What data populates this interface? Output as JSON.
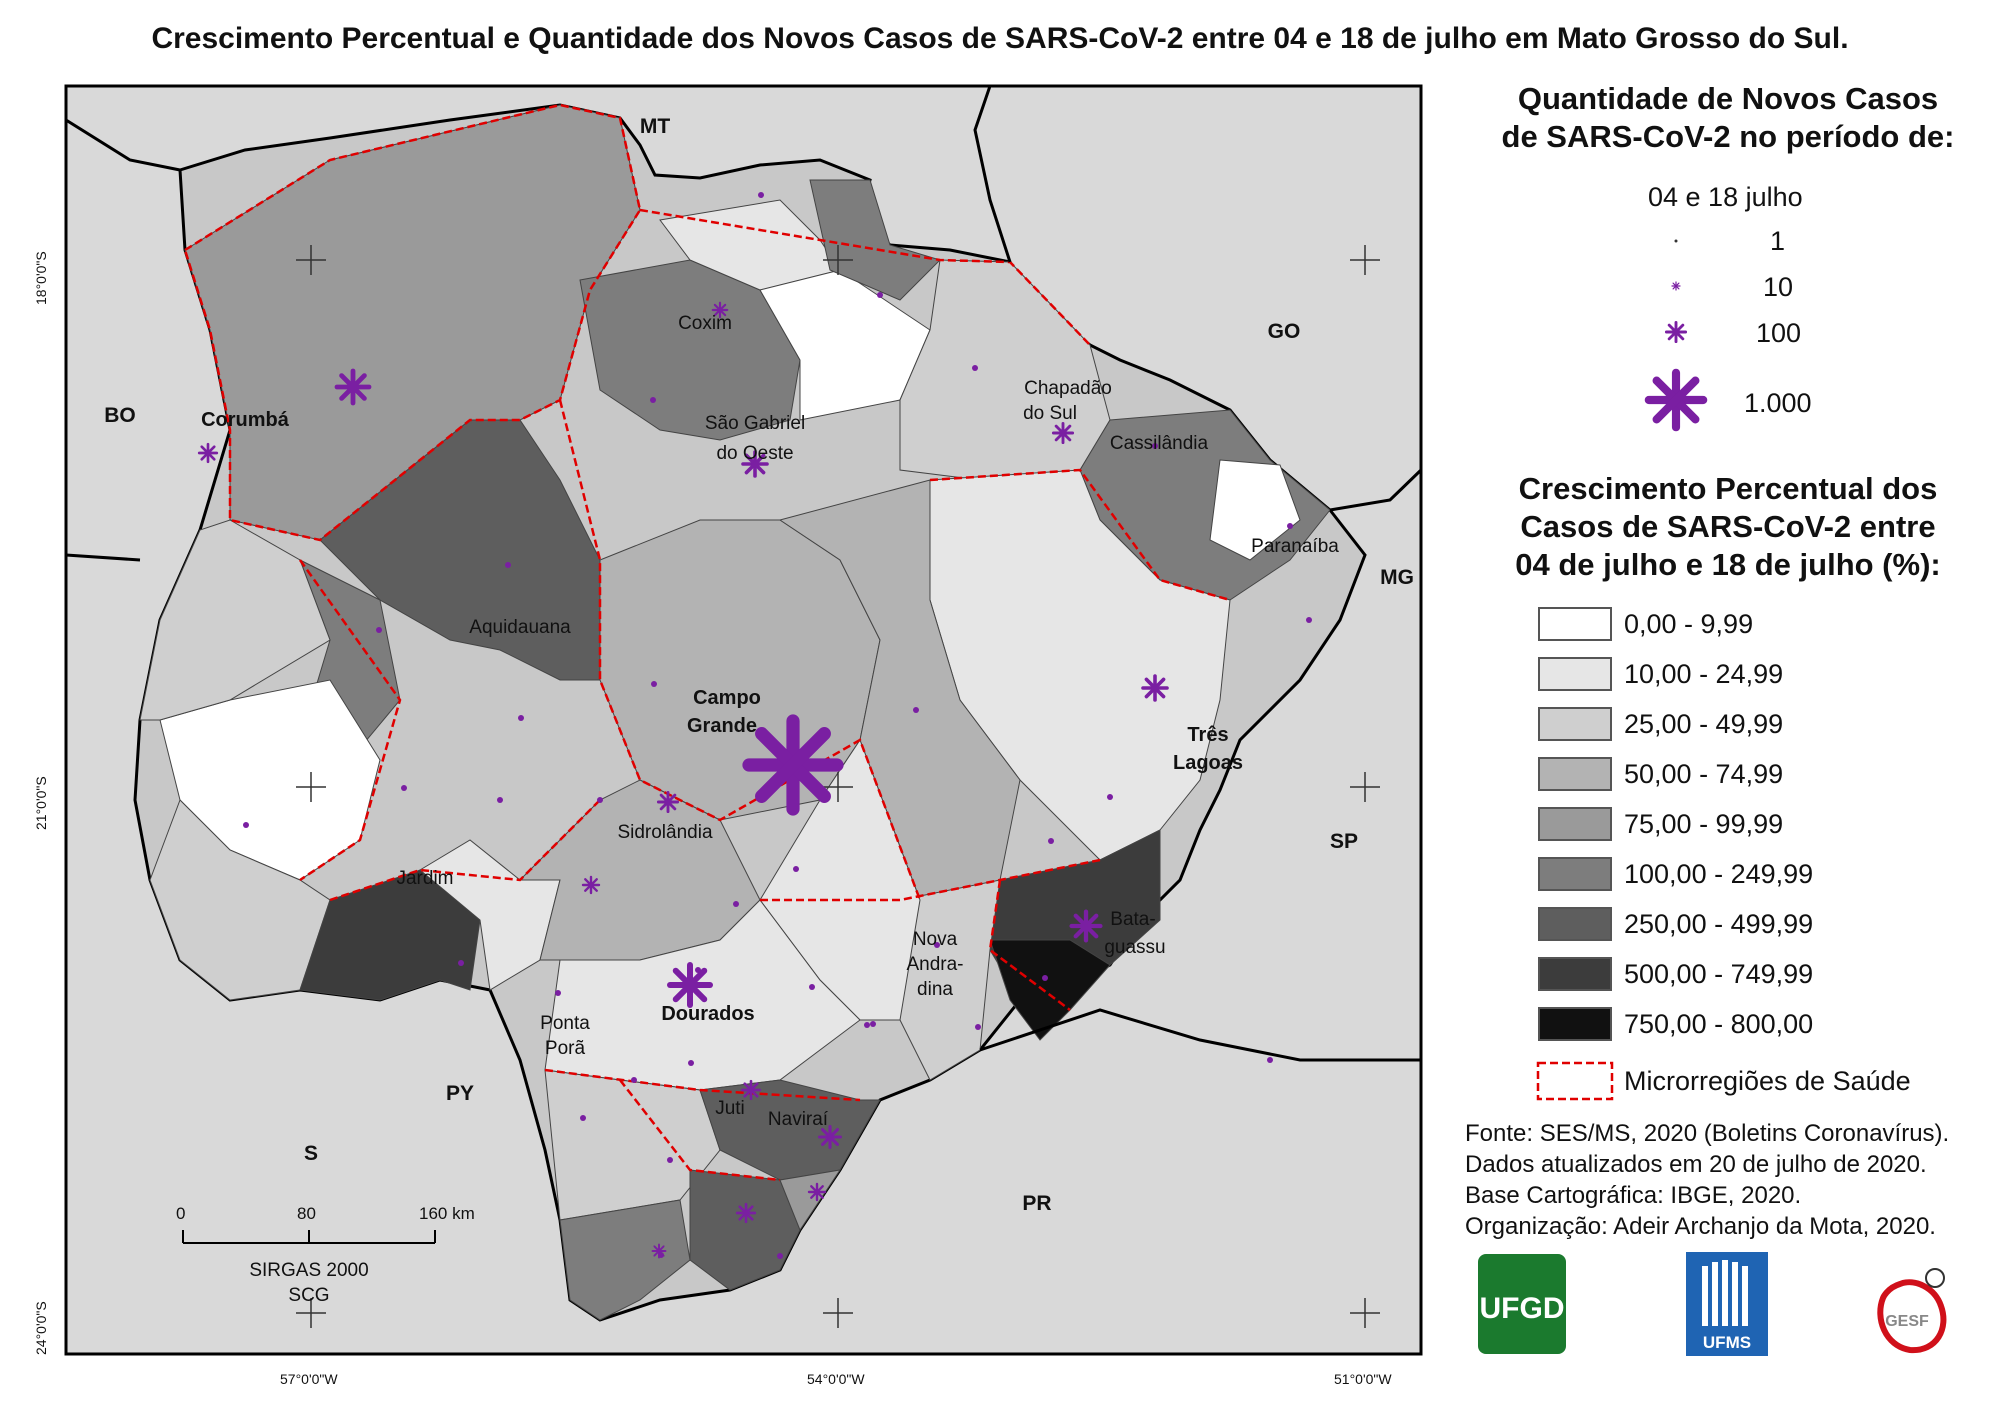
{
  "title": "Crescimento Percentual e Quantidade dos Novos Casos de SARS-CoV-2 entre 04 e 18 de julho em Mato Grosso do Sul.",
  "map": {
    "background_color": "#d9d9d9",
    "border_color": "#000000",
    "health_region_color": "#e00000",
    "state_labels": [
      "MT",
      "GO",
      "MG",
      "SP",
      "PR",
      "PY",
      "BO"
    ],
    "north_arrow": "S",
    "cities": [
      {
        "name": "Coxim",
        "bold": false
      },
      {
        "name": "São Gabriel",
        "bold": false
      },
      {
        "name": "do Oeste",
        "bold": false
      },
      {
        "name": "Chapadão",
        "bold": false
      },
      {
        "name": "do Sul",
        "bold": false
      },
      {
        "name": "Cassilândia",
        "bold": false
      },
      {
        "name": "Corumbá",
        "bold": true
      },
      {
        "name": "Paranaíba",
        "bold": false
      },
      {
        "name": "Aquidauana",
        "bold": false
      },
      {
        "name": "Campo",
        "bold": true
      },
      {
        "name": "Grande",
        "bold": true
      },
      {
        "name": "Três",
        "bold": true
      },
      {
        "name": "Lagoas",
        "bold": true
      },
      {
        "name": "Sidrolândia",
        "bold": false
      },
      {
        "name": "Jardim",
        "bold": false
      },
      {
        "name": "Nova",
        "bold": false
      },
      {
        "name": "Andra-",
        "bold": false
      },
      {
        "name": "dina",
        "bold": false
      },
      {
        "name": "Bata-",
        "bold": false
      },
      {
        "name": "guassu",
        "bold": false
      },
      {
        "name": "Dourados",
        "bold": true
      },
      {
        "name": "Ponta",
        "bold": false
      },
      {
        "name": "Porã",
        "bold": false
      },
      {
        "name": "Juti",
        "bold": false
      },
      {
        "name": "Naviraí",
        "bold": false
      }
    ],
    "lat_labels": [
      "18°0'0\"S",
      "21°0'0\"S",
      "24°0'0\"S"
    ],
    "lon_labels": [
      "57°0'0\"W",
      "54°0'0\"W",
      "51°0'0\"W"
    ],
    "scale": {
      "ticks": [
        "0",
        "80",
        "160 km"
      ],
      "datum1": "SIRGAS 2000",
      "datum2": "SCG"
    }
  },
  "legend_cases": {
    "heading_line1": "Quantidade de Novos Casos",
    "heading_line2": "de SARS-CoV-2 no período de:",
    "period": "04 e 18 julho",
    "items": [
      "1",
      "10",
      "100",
      "1.000"
    ],
    "symbol_color": "#7a1fa2"
  },
  "legend_growth": {
    "heading_line1": "Crescimento Percentual dos",
    "heading_line2": "Casos de SARS-CoV-2 entre",
    "heading_line3": "04 de julho e 18 de julho (%):",
    "classes": [
      {
        "label": "0,00 - 9,99",
        "color": "#ffffff"
      },
      {
        "label": "10,00 - 24,99",
        "color": "#e6e6e6"
      },
      {
        "label": "25,00 - 49,99",
        "color": "#cfcfcf"
      },
      {
        "label": "50,00 - 74,99",
        "color": "#b3b3b3"
      },
      {
        "label": "75,00 - 99,99",
        "color": "#9a9a9a"
      },
      {
        "label": "100,00 - 249,99",
        "color": "#7d7d7d"
      },
      {
        "label": "250,00 - 499,99",
        "color": "#5e5e5e"
      },
      {
        "label": "500,00 - 749,99",
        "color": "#3c3c3c"
      },
      {
        "label": "750,00 - 800,00",
        "color": "#111111"
      }
    ],
    "health_region_label": "Microrregiões de Saúde"
  },
  "credits": [
    "Fonte: SES/MS, 2020 (Boletins Coronavírus).",
    "Dados atualizados em 20 de julho de 2020.",
    "Base Cartográfica: IBGE, 2020.",
    "Organização: Adeir Archanjo da Mota, 2020."
  ],
  "logos": {
    "ufgd": "UFGD",
    "ufms": "UFMS",
    "gesf": "GESF"
  }
}
